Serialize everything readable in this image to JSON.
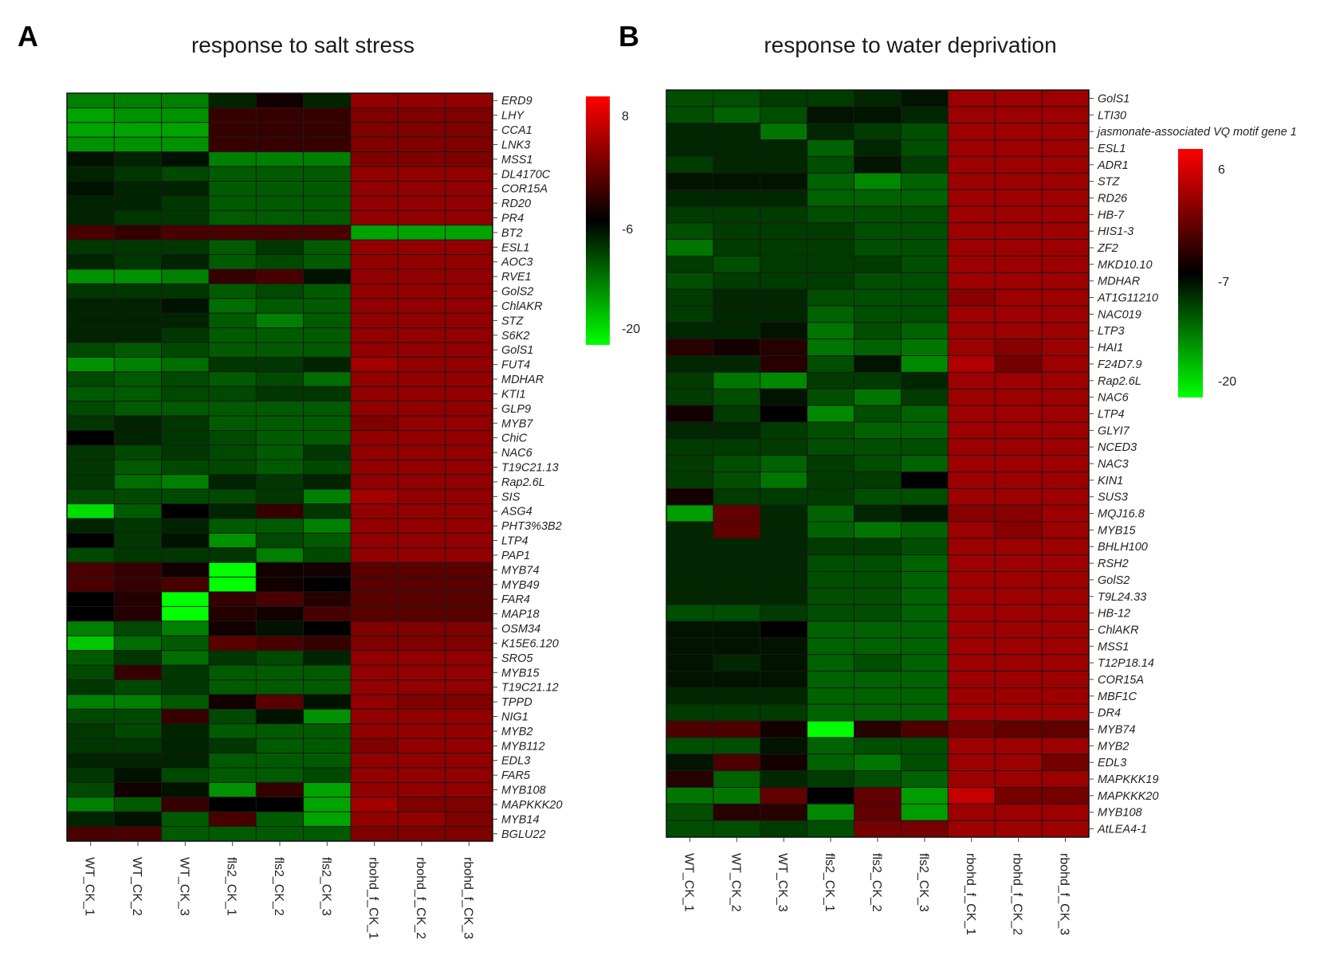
{
  "figure": {
    "panelA": {
      "letter": "A",
      "title": "response to salt stress"
    },
    "panelB": {
      "letter": "B",
      "title": "response to water deprivation"
    }
  },
  "chart_data": [
    {
      "type": "heatmap",
      "panel": "A",
      "title": "response to salt stress",
      "columns": [
        "WT_CK_1",
        "WT_CK_2",
        "WT_CK_3",
        "fls2_CK_1",
        "fls2_CK_2",
        "fls2_CK_3",
        "rbohd_f_CK_1",
        "rbohd_f_CK_2",
        "rbohd_f_CK_3"
      ],
      "rows": [
        "ERD9",
        "LHY",
        "CCA1",
        "LNK3",
        "MSS1",
        "DL4170C",
        "COR15A",
        "RD20",
        "PR4",
        "BT2",
        "ESL1",
        "AOC3",
        "RVE1",
        "GolS2",
        "ChlAKR",
        "STZ",
        "S6K2",
        "GolS1",
        "FUT4",
        "MDHAR",
        "KTI1",
        "GLP9",
        "MYB7",
        "ChiC",
        "NAC6",
        "T19C21.13",
        "Rap2.6L",
        "SIS",
        "ASG4",
        "PHT3%3B2",
        "LTP4",
        "PAP1",
        "MYB74",
        "MYB49",
        "FAR4",
        "MAP18",
        "OSM34",
        "K15E6.120",
        "SRO5",
        "MYB15",
        "T19C21.12",
        "TPPD",
        "NIG1",
        "MYB2",
        "MYB112",
        "EDL3",
        "FAR5",
        "MYB108",
        "MAPKKK20",
        "MYB14",
        "BGLU22"
      ],
      "colorscale": {
        "max": 8,
        "mid": -6,
        "min": -20,
        "high_color": "#ff0000",
        "mid_color": "#000000",
        "low_color": "#00ff00",
        "ticks": [
          "8",
          "-6",
          "-20"
        ]
      },
      "values": [
        [
          -13,
          -13,
          -13,
          -8,
          -5,
          -8,
          2,
          2,
          2
        ],
        [
          -15,
          -14,
          -14,
          -3,
          -3,
          -3,
          1,
          1,
          1
        ],
        [
          -15,
          -15,
          -15,
          -3,
          -3,
          -3,
          1,
          1,
          1
        ],
        [
          -14,
          -14,
          -14,
          -3,
          -3,
          -3,
          1,
          1,
          1
        ],
        [
          -7,
          -8,
          -7,
          -13,
          -13,
          -13,
          1,
          1,
          1
        ],
        [
          -8,
          -9,
          -10,
          -11,
          -11,
          -11,
          2,
          2,
          2
        ],
        [
          -7,
          -8,
          -8,
          -11,
          -11,
          -11,
          2,
          2,
          2
        ],
        [
          -8,
          -8,
          -9,
          -11,
          -11,
          -11,
          2,
          2,
          2
        ],
        [
          -8,
          -9,
          -9,
          -11,
          -11,
          -11,
          2,
          2,
          2
        ],
        [
          -2,
          -3,
          -2,
          -2,
          -2,
          -2,
          -15,
          -15,
          -15
        ],
        [
          -9,
          -9,
          -9,
          -11,
          -9,
          -11,
          2,
          2,
          2
        ],
        [
          -8,
          -9,
          -8,
          -11,
          -10,
          -11,
          2,
          2,
          2
        ],
        [
          -14,
          -14,
          -13,
          -3,
          -2,
          -7,
          2,
          2,
          2
        ],
        [
          -9,
          -9,
          -9,
          -11,
          -10,
          -11,
          2,
          2,
          2
        ],
        [
          -8,
          -8,
          -7,
          -12,
          -11,
          -11,
          2,
          2,
          2
        ],
        [
          -8,
          -8,
          -8,
          -11,
          -13,
          -11,
          2,
          2,
          2
        ],
        [
          -8,
          -8,
          -9,
          -11,
          -11,
          -11,
          2,
          2,
          2
        ],
        [
          -10,
          -11,
          -10,
          -11,
          -11,
          -11,
          2,
          2,
          2
        ],
        [
          -14,
          -13,
          -12,
          -9,
          -9,
          -8,
          3,
          2,
          2
        ],
        [
          -10,
          -11,
          -10,
          -11,
          -10,
          -12,
          2,
          2,
          2
        ],
        [
          -11,
          -11,
          -10,
          -10,
          -9,
          -9,
          2,
          2,
          2
        ],
        [
          -10,
          -11,
          -11,
          -11,
          -11,
          -11,
          2,
          2,
          2
        ],
        [
          -9,
          -8,
          -9,
          -11,
          -11,
          -11,
          1,
          2,
          2
        ],
        [
          -6,
          -8,
          -9,
          -10,
          -11,
          -11,
          2,
          2,
          2
        ],
        [
          -9,
          -10,
          -9,
          -10,
          -11,
          -9,
          2,
          2,
          2
        ],
        [
          -9,
          -11,
          -10,
          -10,
          -11,
          -10,
          2,
          2,
          2
        ],
        [
          -9,
          -12,
          -13,
          -8,
          -9,
          -8,
          2,
          2,
          2
        ],
        [
          -10,
          -10,
          -10,
          -10,
          -9,
          -13,
          3,
          2,
          2
        ],
        [
          -18,
          -11,
          -6,
          -8,
          -3,
          -9,
          2,
          2,
          2
        ],
        [
          -8,
          -9,
          -8,
          -11,
          -11,
          -13,
          2,
          2,
          2
        ],
        [
          -6,
          -9,
          -7,
          -14,
          -10,
          -11,
          2,
          2,
          2
        ],
        [
          -10,
          -9,
          -9,
          -9,
          -13,
          -10,
          2,
          2,
          2
        ],
        [
          -2,
          -3,
          -5,
          -20,
          -5,
          -5,
          -1,
          -1,
          -1
        ],
        [
          -2,
          -3,
          -2,
          -20,
          -5,
          -6,
          -1,
          -1,
          -1
        ],
        [
          -6,
          -4,
          -20,
          -3,
          -2,
          -4,
          -1,
          -1,
          -1
        ],
        [
          -6,
          -4,
          -20,
          -4,
          -5,
          -2,
          -1,
          -1,
          -1
        ],
        [
          -13,
          -10,
          -13,
          -5,
          -7,
          -6,
          1,
          1,
          1
        ],
        [
          -17,
          -12,
          -11,
          -1,
          -2,
          -3,
          1,
          1,
          1
        ],
        [
          -11,
          -9,
          -12,
          -9,
          -10,
          -8,
          2,
          2,
          2
        ],
        [
          -10,
          -3,
          -9,
          -11,
          -11,
          -11,
          2,
          2,
          2
        ],
        [
          -9,
          -10,
          -9,
          -11,
          -11,
          -11,
          2,
          2,
          2
        ],
        [
          -13,
          -13,
          -11,
          -5,
          -1,
          -7,
          2,
          1,
          1
        ],
        [
          -10,
          -10,
          -3,
          -10,
          -7,
          -14,
          2,
          2,
          2
        ],
        [
          -9,
          -10,
          -8,
          -11,
          -11,
          -11,
          2,
          2,
          2
        ],
        [
          -9,
          -9,
          -8,
          -9,
          -11,
          -11,
          1,
          2,
          2
        ],
        [
          -8,
          -8,
          -8,
          -11,
          -11,
          -11,
          2,
          2,
          2
        ],
        [
          -9,
          -7,
          -10,
          -11,
          -11,
          -10,
          2,
          2,
          2
        ],
        [
          -10,
          -5,
          -7,
          -14,
          -3,
          -15,
          2,
          2,
          2
        ],
        [
          -13,
          -11,
          -3,
          -6,
          -6,
          -15,
          3,
          1,
          1
        ],
        [
          -8,
          -7,
          -11,
          -2,
          -11,
          -15,
          2,
          2,
          1
        ],
        [
          -2,
          -2,
          -11,
          -11,
          -11,
          -11,
          1,
          1,
          1
        ]
      ]
    },
    {
      "type": "heatmap",
      "panel": "B",
      "title": "response to water deprivation",
      "columns": [
        "WT_CK_1",
        "WT_CK_2",
        "WT_CK_3",
        "fls2_CK_1",
        "fls2_CK_2",
        "fls2_CK_3",
        "rbohd_f_CK_1",
        "rbohd_f_CK_2",
        "rbohd_f_CK_3"
      ],
      "rows": [
        "GolS1",
        "LTI30",
        "jasmonate-associated VQ motif gene 1",
        "ESL1",
        "ADR1",
        "STZ",
        "RD26",
        "HB-7",
        "HIS1-3",
        "ZF2",
        "MKD10.10",
        "MDHAR",
        "AT1G11210",
        "NAC019",
        "LTP3",
        "HAI1",
        "F24D7.9",
        "Rap2.6L",
        "NAC6",
        "LTP4",
        "GLYI7",
        "NCED3",
        "NAC3",
        "KIN1",
        "SUS3",
        "MQJ16.8",
        "MYB15",
        "BHLH100",
        "RSH2",
        "GolS2",
        "T9L24.33",
        "HB-12",
        "ChlAKR",
        "MSS1",
        "T12P18.14",
        "COR15A",
        "MBF1C",
        "DR4",
        "MYB74",
        "MYB2",
        "EDL3",
        "MAPKKK19",
        "MAPKKK20",
        "MYB108",
        "AtLEA4-1"
      ],
      "colorscale": {
        "max": 6,
        "mid": -7,
        "min": -20,
        "high_color": "#ff0000",
        "mid_color": "#000000",
        "low_color": "#00ff00",
        "ticks": [
          "6",
          "-7",
          "-20"
        ]
      },
      "values": [
        [
          -11,
          -11,
          -10,
          -10,
          -9,
          -8,
          1,
          1,
          1
        ],
        [
          -11,
          -12,
          -11,
          -8,
          -8,
          -9,
          1,
          1,
          1
        ],
        [
          -9,
          -9,
          -13,
          -9,
          -10,
          -11,
          1,
          1,
          1
        ],
        [
          -9,
          -9,
          -9,
          -12,
          -9,
          -11,
          1,
          1,
          1
        ],
        [
          -10,
          -9,
          -9,
          -11,
          -8,
          -10,
          1,
          1,
          1
        ],
        [
          -8,
          -8,
          -8,
          -12,
          -14,
          -12,
          1,
          1,
          1
        ],
        [
          -9,
          -9,
          -9,
          -12,
          -12,
          -12,
          1,
          1,
          1
        ],
        [
          -10,
          -10,
          -10,
          -11,
          -11,
          -11,
          1,
          1,
          1
        ],
        [
          -11,
          -10,
          -10,
          -10,
          -11,
          -11,
          1,
          1,
          1
        ],
        [
          -13,
          -10,
          -10,
          -10,
          -11,
          -11,
          1,
          1,
          1
        ],
        [
          -10,
          -11,
          -10,
          -10,
          -10,
          -11,
          1,
          1,
          1
        ],
        [
          -11,
          -10,
          -10,
          -10,
          -11,
          -11,
          1,
          1,
          1
        ],
        [
          -10,
          -9,
          -9,
          -11,
          -11,
          -11,
          0,
          1,
          1
        ],
        [
          -10,
          -9,
          -9,
          -12,
          -11,
          -11,
          1,
          1,
          1
        ],
        [
          -9,
          -9,
          -8,
          -13,
          -11,
          -12,
          1,
          1,
          1
        ],
        [
          -5,
          -6,
          -5,
          -13,
          -12,
          -13,
          1,
          0,
          1
        ],
        [
          -9,
          -9,
          -5,
          -11,
          -8,
          -14,
          2,
          -1,
          1
        ],
        [
          -10,
          -13,
          -14,
          -10,
          -10,
          -9,
          1,
          1,
          1
        ],
        [
          -10,
          -11,
          -8,
          -11,
          -13,
          -10,
          1,
          1,
          1
        ],
        [
          -6,
          -10,
          -7,
          -14,
          -11,
          -12,
          1,
          1,
          1
        ],
        [
          -9,
          -9,
          -10,
          -11,
          -12,
          -12,
          1,
          1,
          1
        ],
        [
          -10,
          -10,
          -10,
          -11,
          -11,
          -11,
          1,
          1,
          1
        ],
        [
          -10,
          -11,
          -12,
          -10,
          -11,
          -12,
          1,
          1,
          1
        ],
        [
          -10,
          -11,
          -13,
          -10,
          -10,
          -7,
          1,
          1,
          1
        ],
        [
          -6,
          -10,
          -10,
          -10,
          -11,
          -11,
          1,
          1,
          1
        ],
        [
          -15,
          -2,
          -9,
          -12,
          -9,
          -8,
          0,
          0,
          1
        ],
        [
          -9,
          -2,
          -9,
          -12,
          -13,
          -12,
          1,
          0,
          1
        ],
        [
          -9,
          -9,
          -9,
          -10,
          -10,
          -11,
          1,
          1,
          1
        ],
        [
          -9,
          -9,
          -9,
          -11,
          -11,
          -12,
          1,
          1,
          1
        ],
        [
          -9,
          -9,
          -9,
          -11,
          -11,
          -12,
          1,
          1,
          1
        ],
        [
          -9,
          -9,
          -9,
          -11,
          -11,
          -12,
          1,
          1,
          1
        ],
        [
          -11,
          -11,
          -10,
          -11,
          -11,
          -12,
          1,
          1,
          1
        ],
        [
          -8,
          -8,
          -7,
          -12,
          -12,
          -12,
          1,
          1,
          1
        ],
        [
          -8,
          -8,
          -8,
          -12,
          -12,
          -12,
          1,
          1,
          1
        ],
        [
          -8,
          -9,
          -8,
          -12,
          -11,
          -12,
          1,
          1,
          1
        ],
        [
          -8,
          -8,
          -8,
          -12,
          -12,
          -12,
          1,
          1,
          1
        ],
        [
          -9,
          -9,
          -9,
          -12,
          -12,
          -12,
          1,
          1,
          1
        ],
        [
          -10,
          -10,
          -10,
          -12,
          -12,
          -12,
          1,
          1,
          1
        ],
        [
          -3,
          -3,
          -6,
          -20,
          -5,
          -3,
          -1,
          -2,
          -2
        ],
        [
          -11,
          -11,
          -8,
          -12,
          -11,
          -11,
          1,
          1,
          1
        ],
        [
          -8,
          -3,
          -6,
          -12,
          -13,
          -11,
          1,
          1,
          -1
        ],
        [
          -5,
          -12,
          -9,
          -10,
          -11,
          -12,
          1,
          1,
          1
        ],
        [
          -13,
          -13,
          -2,
          -7,
          -2,
          -15,
          3,
          -1,
          -1
        ],
        [
          -11,
          -5,
          -5,
          -14,
          -2,
          -15,
          1,
          1,
          1
        ],
        [
          -11,
          -11,
          -10,
          -11,
          -1,
          -1,
          1,
          1,
          1
        ]
      ]
    }
  ]
}
